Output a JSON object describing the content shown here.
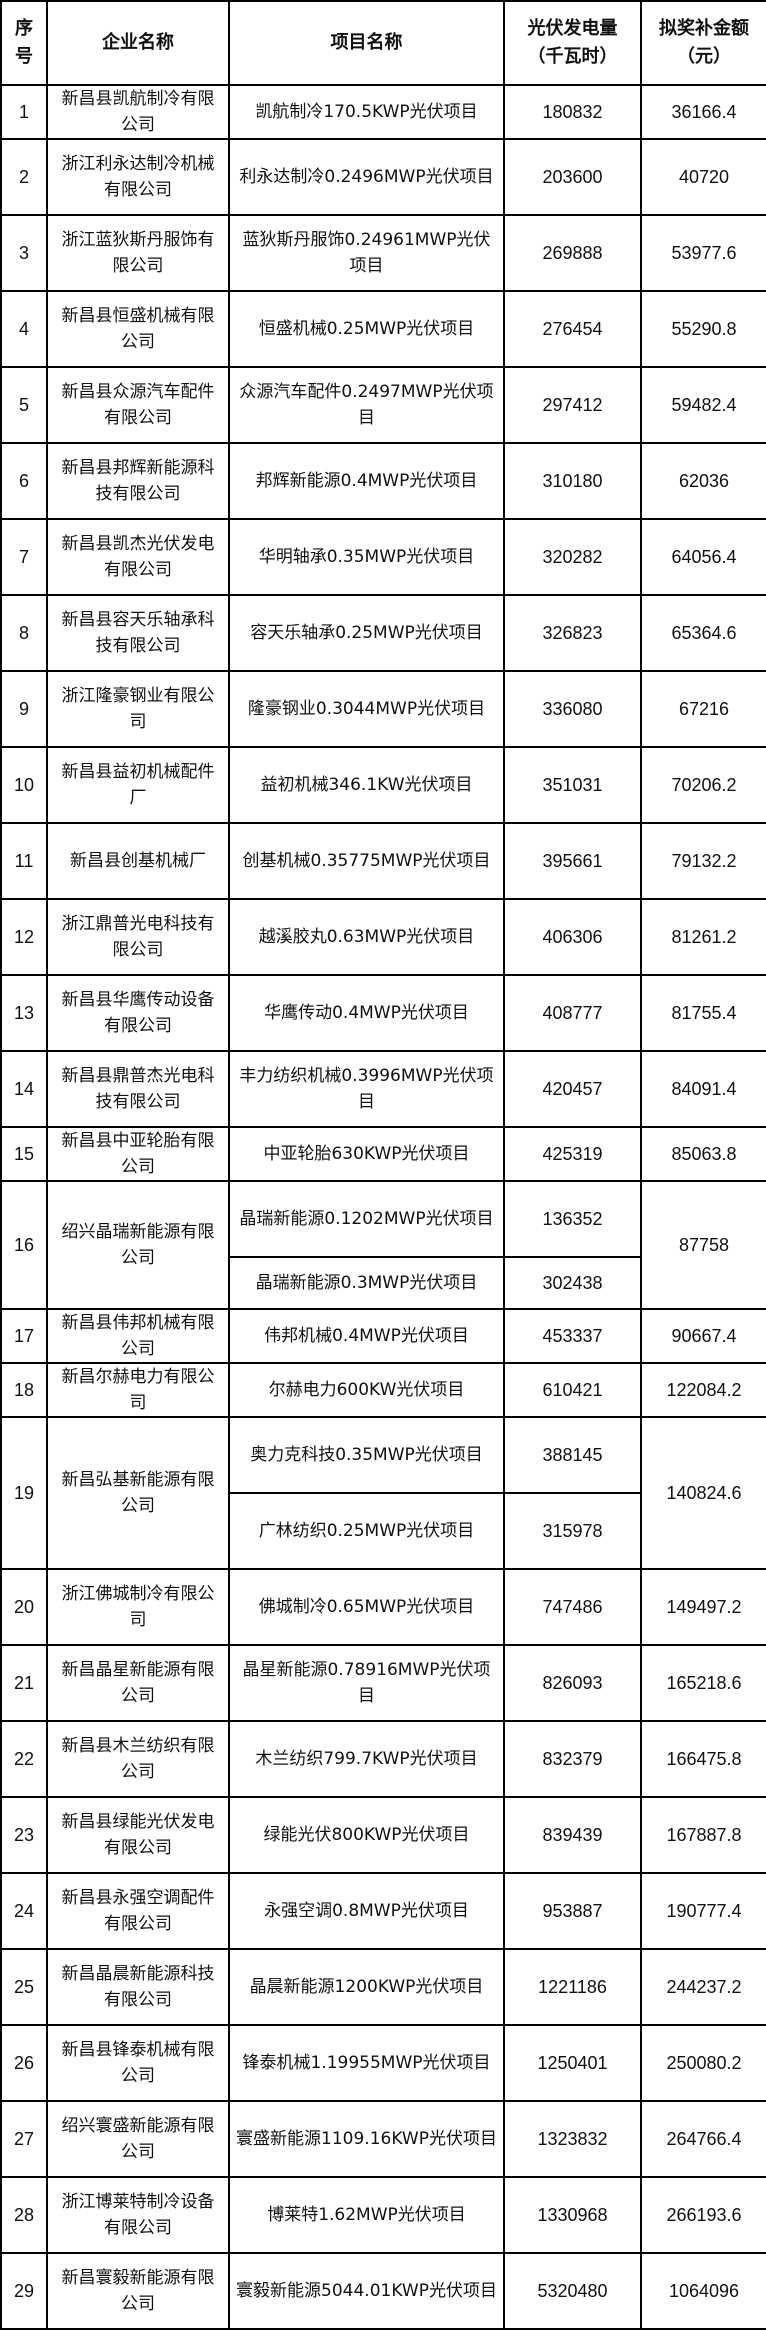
{
  "headers": {
    "no": "序号",
    "company": "企业名称",
    "project": "项目名称",
    "generation": "光伏发电量（千瓦时）",
    "subsidy": "拟奖补金额（元）"
  },
  "rows": [
    {
      "no": "1",
      "company": "新昌县凯航制冷有限公司",
      "projects": [
        {
          "name": "凯航制冷170.5KWP光伏项目",
          "kwh": "180832"
        }
      ],
      "subsidy": "36166.4"
    },
    {
      "no": "2",
      "company": "浙江利永达制冷机械有限公司",
      "projects": [
        {
          "name": "利永达制冷0.2496MWP光伏项目",
          "kwh": "203600"
        }
      ],
      "subsidy": "40720"
    },
    {
      "no": "3",
      "company": "浙江蓝狄斯丹服饰有限公司",
      "projects": [
        {
          "name": "蓝狄斯丹服饰0.24961MWP光伏项目",
          "kwh": "269888"
        }
      ],
      "subsidy": "53977.6"
    },
    {
      "no": "4",
      "company": "新昌县恒盛机械有限公司",
      "projects": [
        {
          "name": "恒盛机械0.25MWP光伏项目",
          "kwh": "276454"
        }
      ],
      "subsidy": "55290.8"
    },
    {
      "no": "5",
      "company": "新昌县众源汽车配件有限公司",
      "projects": [
        {
          "name": "众源汽车配件0.2497MWP光伏项目",
          "kwh": "297412"
        }
      ],
      "subsidy": "59482.4"
    },
    {
      "no": "6",
      "company": "新昌县邦辉新能源科技有限公司",
      "projects": [
        {
          "name": "邦辉新能源0.4MWP光伏项目",
          "kwh": "310180"
        }
      ],
      "subsidy": "62036"
    },
    {
      "no": "7",
      "company": "新昌县凯杰光伏发电有限公司",
      "projects": [
        {
          "name": "华明轴承0.35MWP光伏项目",
          "kwh": "320282"
        }
      ],
      "subsidy": "64056.4"
    },
    {
      "no": "8",
      "company": "新昌县容天乐轴承科技有限公司",
      "projects": [
        {
          "name": "容天乐轴承0.25MWP光伏项目",
          "kwh": "326823"
        }
      ],
      "subsidy": "65364.6"
    },
    {
      "no": "9",
      "company": "浙江隆豪钢业有限公司",
      "projects": [
        {
          "name": "隆豪钢业0.3044MWP光伏项目",
          "kwh": "336080"
        }
      ],
      "subsidy": "67216"
    },
    {
      "no": "10",
      "company": "新昌县益初机械配件厂",
      "projects": [
        {
          "name": "益初机械346.1KW光伏项目",
          "kwh": "351031"
        }
      ],
      "subsidy": "70206.2"
    },
    {
      "no": "11",
      "company": "新昌县创基机械厂",
      "projects": [
        {
          "name": "创基机械0.35775MWP光伏项目",
          "kwh": "395661"
        }
      ],
      "subsidy": "79132.2"
    },
    {
      "no": "12",
      "company": "浙江鼎普光电科技有限公司",
      "projects": [
        {
          "name": "越溪胶丸0.63MWP光伏项目",
          "kwh": "406306"
        }
      ],
      "subsidy": "81261.2"
    },
    {
      "no": "13",
      "company": "新昌县华鹰传动设备有限公司",
      "projects": [
        {
          "name": "华鹰传动0.4MWP光伏项目",
          "kwh": "408777"
        }
      ],
      "subsidy": "81755.4"
    },
    {
      "no": "14",
      "company": "新昌县鼎普杰光电科技有限公司",
      "projects": [
        {
          "name": "丰力纺织机械0.3996MWP光伏项目",
          "kwh": "420457"
        }
      ],
      "subsidy": "84091.4"
    },
    {
      "no": "15",
      "company": "新昌县中亚轮胎有限公司",
      "projects": [
        {
          "name": "中亚轮胎630KWP光伏项目",
          "kwh": "425319"
        }
      ],
      "subsidy": "85063.8"
    },
    {
      "no": "16",
      "company": "绍兴晶瑞新能源有限公司",
      "projects": [
        {
          "name": "晶瑞新能源0.1202MWP光伏项目",
          "kwh": "136352"
        },
        {
          "name": "晶瑞新能源0.3MWP光伏项目",
          "kwh": "302438"
        }
      ],
      "subsidy": "87758"
    },
    {
      "no": "17",
      "company": "新昌县伟邦机械有限公司",
      "projects": [
        {
          "name": "伟邦机械0.4MWP光伏项目",
          "kwh": "453337"
        }
      ],
      "subsidy": "90667.4"
    },
    {
      "no": "18",
      "company": "新昌尔赫电力有限公司",
      "projects": [
        {
          "name": "尔赫电力600KW光伏项目",
          "kwh": "610421"
        }
      ],
      "subsidy": "122084.2"
    },
    {
      "no": "19",
      "company": "新昌弘基新能源有限公司",
      "projects": [
        {
          "name": "奥力克科技0.35MWP光伏项目",
          "kwh": "388145"
        },
        {
          "name": "广林纺织0.25MWP光伏项目",
          "kwh": "315978"
        }
      ],
      "subsidy": "140824.6"
    },
    {
      "no": "20",
      "company": "浙江佛城制冷有限公司",
      "projects": [
        {
          "name": "佛城制冷0.65MWP光伏项目",
          "kwh": "747486"
        }
      ],
      "subsidy": "149497.2"
    },
    {
      "no": "21",
      "company": "新昌晶星新能源有限公司",
      "projects": [
        {
          "name": "晶星新能源0.78916MWP光伏项目",
          "kwh": "826093"
        }
      ],
      "subsidy": "165218.6"
    },
    {
      "no": "22",
      "company": "新昌县木兰纺织有限公司",
      "projects": [
        {
          "name": "木兰纺织799.7KWP光伏项目",
          "kwh": "832379"
        }
      ],
      "subsidy": "166475.8"
    },
    {
      "no": "23",
      "company": "新昌县绿能光伏发电有限公司",
      "projects": [
        {
          "name": "绿能光伏800KWP光伏项目",
          "kwh": "839439"
        }
      ],
      "subsidy": "167887.8"
    },
    {
      "no": "24",
      "company": "新昌县永强空调配件有限公司",
      "projects": [
        {
          "name": "永强空调0.8MWP光伏项目",
          "kwh": "953887"
        }
      ],
      "subsidy": "190777.4"
    },
    {
      "no": "25",
      "company": "新昌晶晨新能源科技有限公司",
      "projects": [
        {
          "name": "晶晨新能源1200KWP光伏项目",
          "kwh": "1221186"
        }
      ],
      "subsidy": "244237.2"
    },
    {
      "no": "26",
      "company": "新昌县锋泰机械有限公司",
      "projects": [
        {
          "name": "锋泰机械1.19955MWP光伏项目",
          "kwh": "1250401"
        }
      ],
      "subsidy": "250080.2"
    },
    {
      "no": "27",
      "company": "绍兴寰盛新能源有限公司",
      "projects": [
        {
          "name": "寰盛新能源1109.16KWP光伏项目",
          "kwh": "1323832"
        }
      ],
      "subsidy": "264766.4"
    },
    {
      "no": "28",
      "company": "浙江博莱特制冷设备有限公司",
      "projects": [
        {
          "name": "博莱特1.62MWP光伏项目",
          "kwh": "1330968"
        }
      ],
      "subsidy": "266193.6"
    },
    {
      "no": "29",
      "company": "新昌寰毅新能源有限公司",
      "projects": [
        {
          "name": "寰毅新能源5044.01KWP光伏项目",
          "kwh": "5320480"
        }
      ],
      "subsidy": "1064096"
    }
  ]
}
